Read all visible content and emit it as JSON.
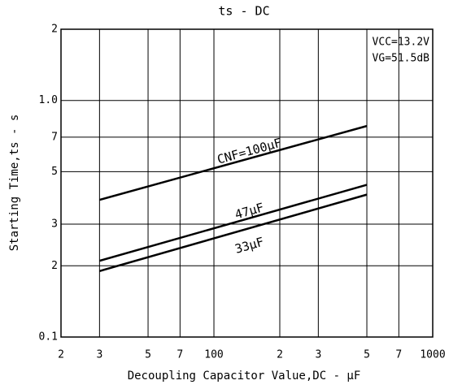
{
  "chart_data": {
    "type": "line",
    "title": "ts - DC",
    "x_label": "Decoupling Capacitor Value,DC - µF",
    "y_label": "Starting Time,ts - s",
    "annotations": [
      "VCC=13.2V",
      "VG=51.5dB"
    ],
    "x": [
      30,
      500
    ],
    "series": [
      {
        "name": "CNF=100µF",
        "color": "#000000",
        "values": [
          0.38,
          0.78
        ]
      },
      {
        "name": "47µF",
        "color": "#000000",
        "values": [
          0.21,
          0.44
        ]
      },
      {
        "name": "33µF",
        "color": "#000000",
        "values": [
          0.19,
          0.4
        ]
      }
    ],
    "xlim": [
      20,
      1000
    ],
    "ylim": [
      0.1,
      2
    ],
    "x_log": true,
    "y_log": true,
    "grid": true,
    "xticks": [
      {
        "value": 20,
        "label": "2"
      },
      {
        "value": 30,
        "label": "3"
      },
      {
        "value": 50,
        "label": "5"
      },
      {
        "value": 70,
        "label": "7"
      },
      100,
      {
        "value": 200,
        "label": "2"
      },
      {
        "value": 300,
        "label": "3"
      },
      {
        "value": 500,
        "label": "5"
      },
      {
        "value": 700,
        "label": "7"
      },
      1000
    ],
    "yticks": [
      0.1,
      {
        "value": 0.2,
        "label": "2"
      },
      {
        "value": 0.3,
        "label": "3"
      },
      {
        "value": 0.5,
        "label": "5"
      },
      {
        "value": 0.7,
        "label": "7"
      },
      {
        "value": 1,
        "label": "1.0"
      },
      2
    ]
  }
}
